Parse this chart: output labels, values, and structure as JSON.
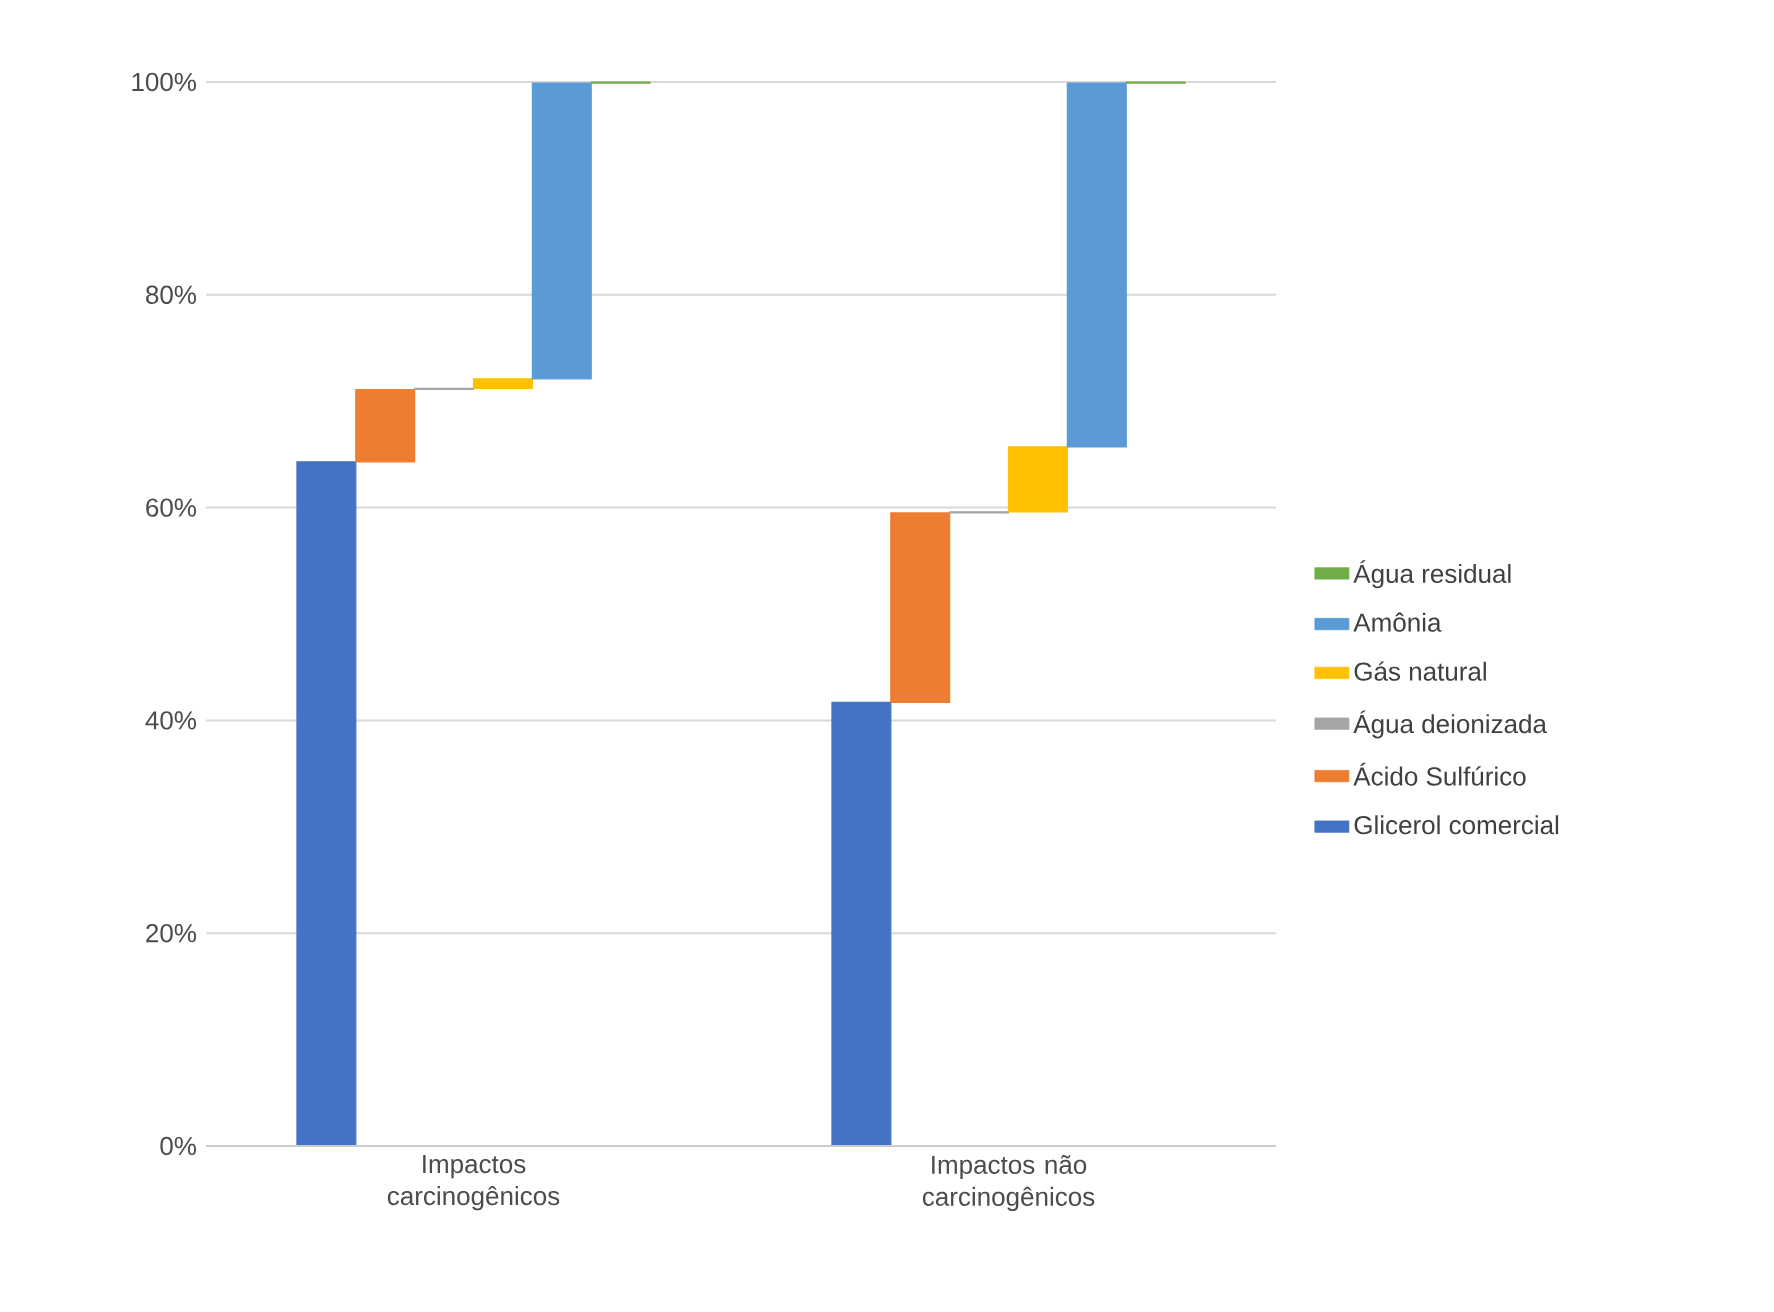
{
  "chart_data": {
    "type": "bar",
    "categories": [
      "Impactos carcinogênicos",
      "Impactos não carcinogênicos"
    ],
    "series": [
      {
        "name": "Glicerol comercial",
        "color": "#4472c4",
        "values": [
          64.3,
          41.7
        ],
        "base": [
          0,
          0
        ]
      },
      {
        "name": "Ácido Sulfúrico",
        "color": "#ed7d31",
        "values": [
          6.8,
          17.8
        ],
        "base": [
          64.3,
          41.7
        ]
      },
      {
        "name": "Água deionizada",
        "color": "#a5a5a5",
        "values": [
          0.1,
          0.1
        ],
        "base": [
          71.1,
          59.5
        ]
      },
      {
        "name": "Gás natural",
        "color": "#ffc000",
        "values": [
          0.9,
          6.1
        ],
        "base": [
          71.2,
          59.6
        ]
      },
      {
        "name": "Amônia",
        "color": "#5b9bd5",
        "values": [
          27.8,
          34.2
        ],
        "base": [
          72.1,
          65.7
        ]
      },
      {
        "name": "Água residual",
        "color": "#70ad47",
        "values": [
          0.1,
          0.1
        ],
        "base": [
          99.9,
          99.9
        ]
      }
    ],
    "ylim": [
      0,
      100
    ],
    "yticks": [
      {
        "value": 0,
        "label": "0%"
      },
      {
        "value": 20,
        "label": "20%"
      },
      {
        "value": 40,
        "label": "40%"
      },
      {
        "value": 60,
        "label": "60%"
      },
      {
        "value": 80,
        "label": "80%"
      },
      {
        "value": 100,
        "label": "100%"
      }
    ],
    "grid": "y",
    "legend": "right"
  }
}
